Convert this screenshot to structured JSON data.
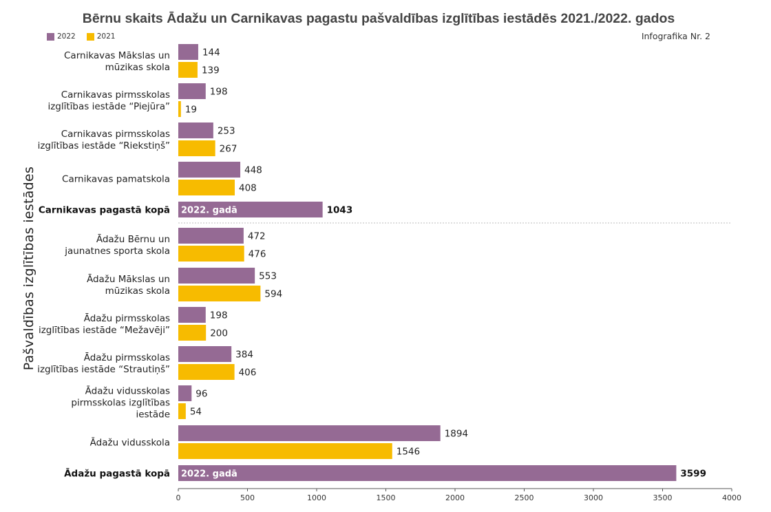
{
  "title": "Bērnu skaits Ādažu un Carnikavas pagastu pašvaldības izglītības iestādēs 2021./2022. gados",
  "subtitle": "Infografika Nr. 2",
  "colors": {
    "y2022": "#956a94",
    "y2021": "#f7bb00",
    "total_text": "#ffffff"
  },
  "chart_data": {
    "type": "bar",
    "orientation": "horizontal",
    "ylabel": "Pašvaldības izglītības iestādes",
    "xlim": [
      0,
      4000
    ],
    "xticks": [
      0,
      500,
      1000,
      1500,
      2000,
      2500,
      3000,
      3500,
      4000
    ],
    "legend": [
      {
        "name": "2022",
        "color": "#956a94"
      },
      {
        "name": "2021",
        "color": "#f7bb00"
      }
    ],
    "total_bar_label": "2022. gadā",
    "categories": [
      {
        "label": [
          "Carnikavas Mākslas un",
          "mūzikas skola"
        ],
        "v2022": 144,
        "v2021": 139
      },
      {
        "label": [
          "Carnikavas pirmsskolas",
          "izglītības iestāde “Piejūra”"
        ],
        "v2022": 198,
        "v2021": 19
      },
      {
        "label": [
          "Carnikavas pirmsskolas",
          "izglītības iestāde “Riekstiņš”"
        ],
        "v2022": 253,
        "v2021": 267
      },
      {
        "label": [
          "Carnikavas pamatskola"
        ],
        "v2022": 448,
        "v2021": 408
      },
      {
        "label": [
          "Carnikavas pagastā kopā"
        ],
        "total": true,
        "v2022": 1043
      },
      {
        "label": [
          "Ādažu Bērnu un",
          "jaunatnes sporta skola"
        ],
        "v2022": 472,
        "v2021": 476
      },
      {
        "label": [
          "Ādažu Mākslas un",
          "mūzikas skola"
        ],
        "v2022": 553,
        "v2021": 594
      },
      {
        "label": [
          "Ādažu pirmsskolas",
          "izglītības iestāde “Mežavēji”"
        ],
        "v2022": 198,
        "v2021": 200
      },
      {
        "label": [
          "Ādažu pirmsskolas",
          "izglītības iestāde “Strautiņš”"
        ],
        "v2022": 384,
        "v2021": 406
      },
      {
        "label": [
          "Ādažu vidusskolas",
          "pirmsskolas izglītības",
          "iestāde"
        ],
        "v2022": 96,
        "v2021": 54
      },
      {
        "label": [
          "Ādažu vidusskola"
        ],
        "v2022": 1894,
        "v2021": 1546
      },
      {
        "label": [
          "Ādažu pagastā kopā"
        ],
        "total": true,
        "v2022": 3599
      }
    ]
  }
}
